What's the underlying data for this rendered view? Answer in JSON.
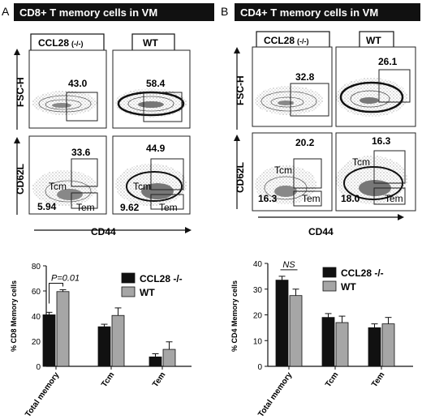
{
  "panels": [
    {
      "letter": "A",
      "title": "CD8+ T memory cells in VM",
      "groups": {
        "ko": "CCL28",
        "ko_suffix": "(-/-)",
        "wt": "WT"
      },
      "axes": {
        "y_top": "FSC-H",
        "y_bottom": "CD62L",
        "x": "CD44"
      },
      "top_values": {
        "ko": "43.0",
        "wt": "58.4"
      },
      "bottom": {
        "ko": {
          "tcm_label": "Tcm",
          "tcm": "33.6",
          "tem_label": "Tem",
          "tem": "5.94"
        },
        "wt": {
          "tcm_label": "Tcm",
          "tcm": "44.9",
          "tem_label": "Tem",
          "tem": "9.62"
        }
      }
    },
    {
      "letter": "B",
      "title": "CD4+ T memory cells in VM",
      "groups": {
        "ko": "CCL28",
        "ko_suffix": "(-/-)",
        "wt": "WT"
      },
      "axes": {
        "y_top": "FSC-H",
        "y_bottom": "CD62L",
        "x": "CD44"
      },
      "top_values": {
        "ko": "32.8",
        "wt": "26.1"
      },
      "bottom": {
        "ko": {
          "tcm_label": "Tcm",
          "tcm": "20.2",
          "tem_label": "Tem",
          "tem": "16.3"
        },
        "wt": {
          "tcm_label": "Tcm",
          "tcm": "16.3",
          "tem_label": "Tem",
          "tem": "18.0"
        }
      }
    }
  ],
  "chart_data": [
    {
      "type": "bar",
      "categories": [
        "Total memory",
        "Tcm",
        "Tem"
      ],
      "series": [
        {
          "name": "CCL28 -/-",
          "values": [
            41,
            31.5,
            7.5
          ],
          "errors": [
            2,
            2,
            2.5
          ],
          "color": "#111111"
        },
        {
          "name": "WT",
          "values": [
            59.5,
            40.5,
            13.5
          ],
          "errors": [
            1.5,
            6,
            6
          ],
          "color": "#a6a6a6"
        }
      ],
      "ylabel": "% CD8 Memory cells",
      "ylim": [
        0,
        80
      ],
      "yticks": [
        0,
        20,
        40,
        60,
        80
      ],
      "annotation": "P=0.01",
      "legend": "top-right"
    },
    {
      "type": "bar",
      "categories": [
        "Total memory",
        "Tcm",
        "Tem"
      ],
      "series": [
        {
          "name": "CCL28 -/-",
          "values": [
            33.5,
            19,
            15
          ],
          "errors": [
            1.5,
            1.5,
            1.5
          ],
          "color": "#111111"
        },
        {
          "name": "WT",
          "values": [
            27.5,
            17,
            16.5
          ],
          "errors": [
            2.5,
            2.5,
            2.5
          ],
          "color": "#a6a6a6"
        }
      ],
      "ylabel": "% CD4 Memory cells",
      "ylim": [
        0,
        40
      ],
      "yticks": [
        0,
        10,
        20,
        30,
        40
      ],
      "annotation": "NS",
      "legend": "top-right"
    }
  ]
}
